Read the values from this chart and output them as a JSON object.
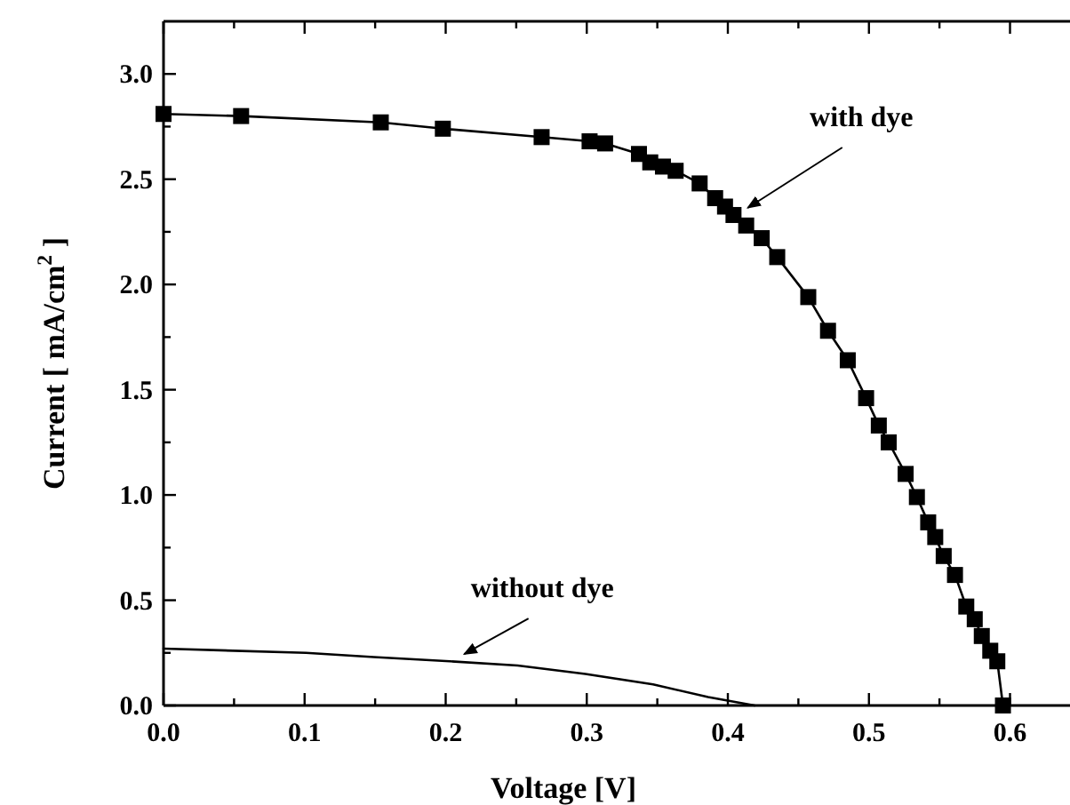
{
  "chart_data": {
    "type": "line",
    "xlabel": "Voltage [V]",
    "ylabel": "Current [ mA/cm$^{2}$ ]",
    "xlim": [
      0,
      0.64
    ],
    "ylim": [
      0,
      3.25
    ],
    "xticks": [
      {
        "value": 0,
        "label": "0.0"
      },
      {
        "value": 0.05,
        "label": null
      },
      0.1,
      {
        "value": 0.15,
        "label": null
      },
      0.2,
      {
        "value": 0.25,
        "label": null
      },
      0.3,
      {
        "value": 0.35,
        "label": null
      },
      0.4,
      {
        "value": 0.45,
        "label": null
      },
      0.5,
      {
        "value": 0.55,
        "label": null
      },
      0.6
    ],
    "yticks": [
      {
        "value": 0,
        "label": "0.0"
      },
      {
        "value": 0.25,
        "label": null
      },
      0.5,
      {
        "value": 0.75,
        "label": null
      },
      {
        "value": 1,
        "label": "1.0"
      },
      {
        "value": 1.25,
        "label": null
      },
      1.5,
      {
        "value": 1.75,
        "label": null
      },
      {
        "value": 2,
        "label": "2.0"
      },
      {
        "value": 2.25,
        "label": null
      },
      2.5,
      {
        "value": 2.75,
        "label": null
      },
      {
        "value": 3,
        "label": "3.0"
      }
    ],
    "grid": false,
    "series": [
      {
        "color": "#000000",
        "marker": "square",
        "x": [
          0.0,
          0.055,
          0.154,
          0.198,
          0.268,
          0.302,
          0.313,
          0.337,
          0.345,
          0.354,
          0.363,
          0.38,
          0.391,
          0.398,
          0.404,
          0.413,
          0.424,
          0.435,
          0.457,
          0.471,
          0.485,
          0.498,
          0.507,
          0.514,
          0.526,
          0.534,
          0.542,
          0.547,
          0.553,
          0.561,
          0.569,
          0.575,
          0.58,
          0.586,
          0.591,
          0.595
        ],
        "values": [
          2.81,
          2.8,
          2.77,
          2.74,
          2.7,
          2.68,
          2.67,
          2.62,
          2.58,
          2.56,
          2.54,
          2.48,
          2.41,
          2.37,
          2.33,
          2.28,
          2.22,
          2.13,
          1.94,
          1.78,
          1.64,
          1.46,
          1.33,
          1.25,
          1.1,
          0.99,
          0.87,
          0.8,
          0.71,
          0.62,
          0.47,
          0.41,
          0.33,
          0.26,
          0.21,
          0.0
        ]
      },
      {
        "color": "#000000",
        "marker": "none",
        "x": [
          0.0,
          0.101,
          0.149,
          0.203,
          0.251,
          0.299,
          0.347,
          0.386,
          0.419
        ],
        "values": [
          0.27,
          0.25,
          0.23,
          0.21,
          0.19,
          0.15,
          0.1,
          0.04,
          0.0
        ]
      }
    ],
    "annotations": [
      {
        "text": "with dye",
        "x": 0.404,
        "y": 2.33
      },
      {
        "text": "without dye",
        "x": 0.203,
        "y": 0.21
      }
    ]
  }
}
